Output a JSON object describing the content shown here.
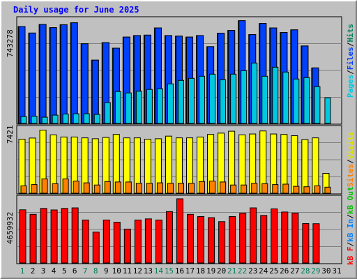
{
  "title": "Daily usage for June 2025",
  "colors": {
    "background": "#c0c0c0",
    "panel": "#c0c0c0",
    "hits": "#00805c",
    "files": "#0040ff",
    "pages": "#00c8e0",
    "visits": "#ffff00",
    "sites": "#ff8000",
    "kbin": "#0080ff",
    "kbout": "#00c000",
    "kbf": "#ff0000",
    "title": "#0000ff",
    "weekend": "#00805c"
  },
  "panels": {
    "top": {
      "ymax_label": "743278",
      "legend": [
        "Hits",
        "/",
        "Files",
        "/",
        "Pages"
      ]
    },
    "middle": {
      "ymax_label": "7421",
      "legend": [
        "Visits",
        "/",
        "Sites"
      ]
    },
    "bottom": {
      "ymax_label": "4659932",
      "legend": [
        "kB Out",
        "/",
        "kB In",
        "/",
        "kB F"
      ]
    }
  },
  "chart_data": [
    {
      "type": "bar",
      "title": "Daily usage for June 2025",
      "categories": [
        "1",
        "2",
        "3",
        "4",
        "5",
        "6",
        "7",
        "8",
        "9",
        "10",
        "11",
        "12",
        "13",
        "14",
        "15",
        "16",
        "17",
        "18",
        "19",
        "20",
        "21",
        "22",
        "23",
        "24",
        "25",
        "26",
        "27",
        "28",
        "29",
        "30",
        "31"
      ],
      "weekend_days": [
        "1",
        "7",
        "8",
        "14",
        "15",
        "21",
        "22",
        "28",
        "29"
      ],
      "ylim": [
        0,
        743278
      ],
      "series": [
        {
          "name": "Hits",
          "values": [
            698000,
            651000,
            713000,
            690000,
            711000,
            725000,
            574000,
            456000,
            582000,
            542000,
            622000,
            633000,
            636000,
            688000,
            633000,
            629000,
            622000,
            633000,
            553000,
            650000,
            670000,
            740000,
            640000,
            720000,
            688000,
            655000,
            674000,
            558000,
            400000,
            null,
            null
          ]
        },
        {
          "name": "Files",
          "values": [
            698000,
            651000,
            713000,
            690000,
            711000,
            725000,
            574000,
            456000,
            582000,
            542000,
            622000,
            633000,
            636000,
            688000,
            633000,
            629000,
            622000,
            633000,
            553000,
            650000,
            670000,
            740000,
            640000,
            720000,
            688000,
            655000,
            674000,
            558000,
            400000,
            null,
            null
          ]
        },
        {
          "name": "Pages",
          "values": [
            50000,
            52000,
            45000,
            60000,
            68000,
            70000,
            70000,
            65000,
            150000,
            230000,
            220000,
            232000,
            245000,
            250000,
            285000,
            310000,
            325000,
            340000,
            355000,
            315000,
            355000,
            380000,
            435000,
            340000,
            405000,
            370000,
            320000,
            330000,
            265000,
            185000,
            null
          ]
        }
      ]
    },
    {
      "type": "bar",
      "ylim": [
        0,
        7421
      ],
      "series": [
        {
          "name": "Visits",
          "values": [
            6250,
            6380,
            7300,
            6750,
            6500,
            6500,
            6400,
            6300,
            6450,
            6800,
            6400,
            6400,
            6250,
            6300,
            6600,
            6400,
            6400,
            6500,
            6800,
            6950,
            7170,
            6750,
            6850,
            7200,
            6850,
            6800,
            6650,
            6200,
            6400,
            2300,
            null
          ]
        },
        {
          "name": "Sites",
          "values": [
            850,
            1000,
            1650,
            1100,
            1650,
            1400,
            1200,
            950,
            1350,
            1300,
            1300,
            1150,
            1150,
            1200,
            1150,
            1150,
            1150,
            1350,
            1400,
            1300,
            950,
            950,
            1150,
            1100,
            1000,
            1050,
            800,
            750,
            850,
            700,
            null
          ]
        }
      ]
    },
    {
      "type": "bar",
      "ylim": [
        0,
        4659932
      ],
      "series": [
        {
          "name": "kB F",
          "values": [
            3860000,
            3530000,
            3960000,
            3850000,
            3960000,
            4000000,
            3120000,
            2240000,
            3120000,
            2960000,
            2460000,
            3120000,
            3200000,
            3120000,
            3730000,
            4660000,
            3530000,
            3370000,
            3290000,
            3000000,
            3370000,
            3610000,
            4000000,
            3450000,
            3930000,
            3700000,
            3620000,
            2860000,
            2850000,
            null,
            null
          ]
        }
      ]
    }
  ],
  "x_labels": [
    "1",
    "2",
    "3",
    "4",
    "5",
    "6",
    "7",
    "8",
    "9",
    "10",
    "11",
    "12",
    "13",
    "14",
    "15",
    "16",
    "17",
    "18",
    "19",
    "20",
    "21",
    "22",
    "23",
    "24",
    "25",
    "26",
    "27",
    "28",
    "29",
    "30",
    "31"
  ]
}
